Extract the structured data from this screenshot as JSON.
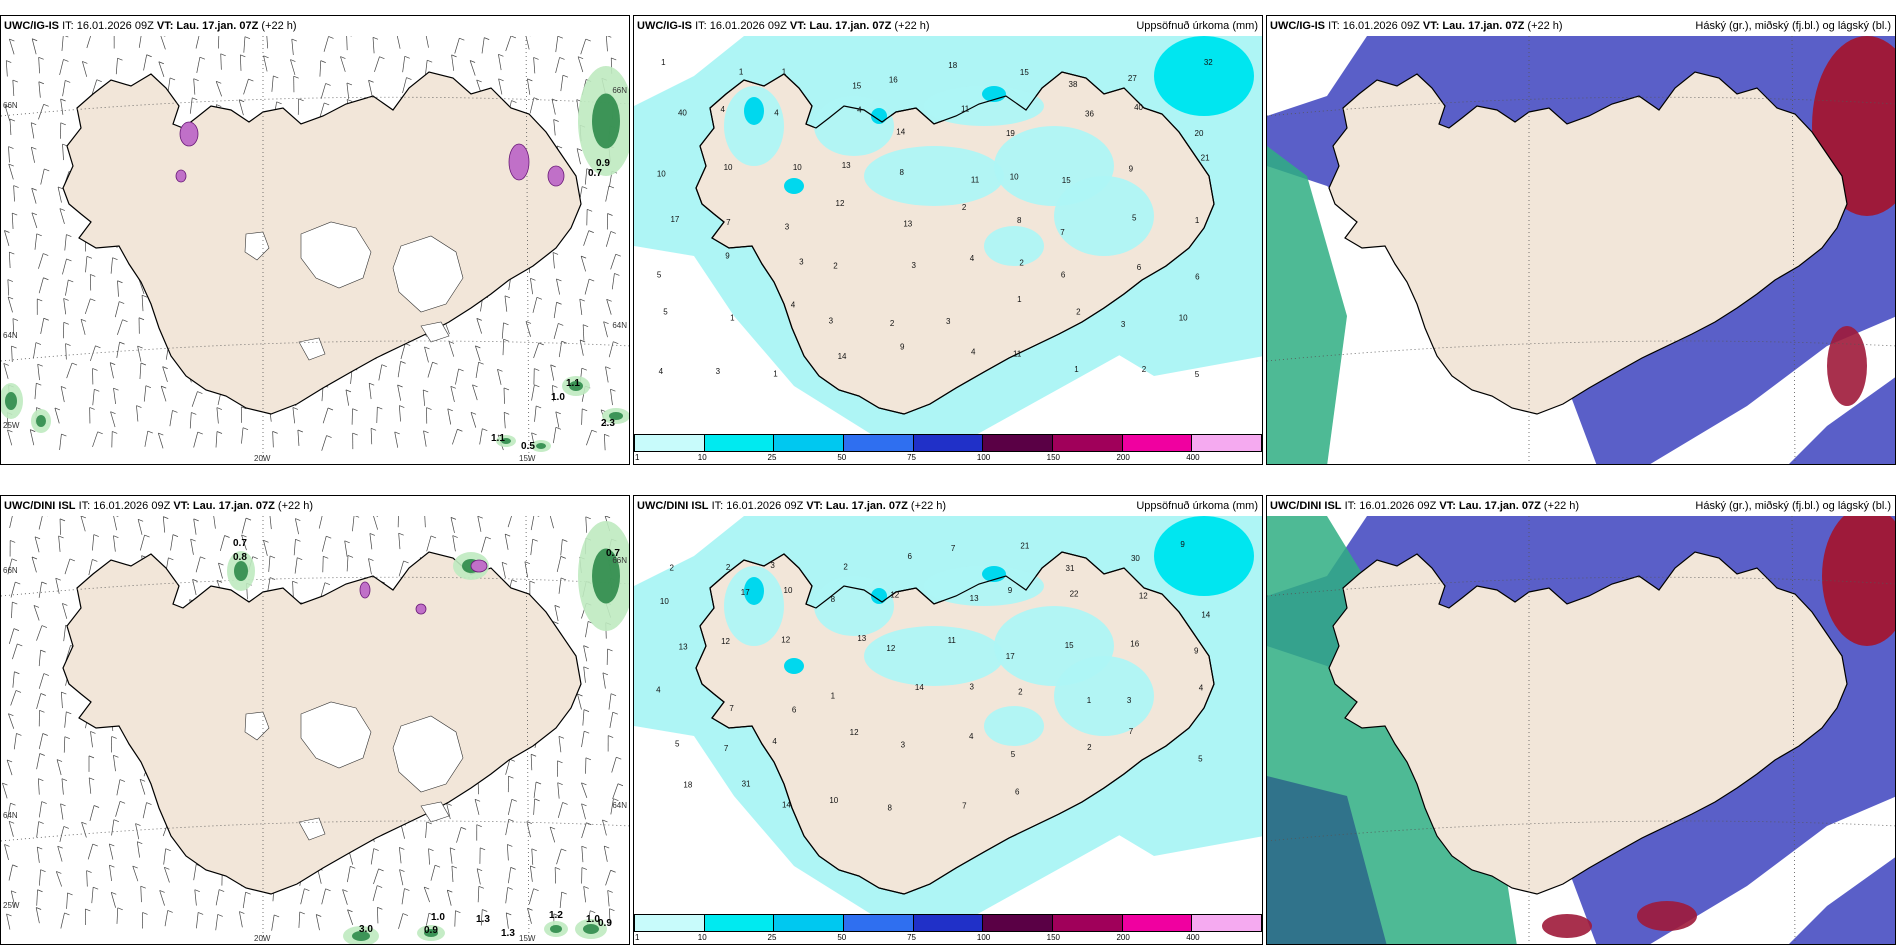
{
  "rows": [
    {
      "model": "UWC/IG-IS",
      "it_label": "IT: 16.01.2026 09Z",
      "vt_label": "VT: Lau. 17.jan. 07Z",
      "lead": "(+22 h)",
      "panel1": {
        "lat_labels": [
          "66N",
          "64N",
          "25W"
        ],
        "lon_labels": [
          "20W",
          "15W"
        ],
        "right_lat_labels": [
          "66N",
          "64N"
        ],
        "contour_values": [
          "0.9",
          "0.7",
          "1.1",
          "1.0",
          "1.1",
          "0.5",
          "2.3"
        ]
      },
      "panel2": {
        "title": "Uppsöfnuð úrkoma (mm)",
        "numbers": [
          "1",
          "1",
          "1",
          "15",
          "16",
          "18",
          "15",
          "38",
          "27",
          "32",
          "40",
          "4",
          "4",
          "4",
          "14",
          "11",
          "19",
          "36",
          "40",
          "20",
          "10",
          "10",
          "10",
          "13",
          "8",
          "11",
          "10",
          "15",
          "9",
          "21",
          "17",
          "7",
          "3",
          "12",
          "13",
          "2",
          "8",
          "7",
          "5",
          "1",
          "5",
          "9",
          "3",
          "2",
          "3",
          "4",
          "2",
          "6",
          "6",
          "6",
          "5",
          "1",
          "4",
          "3",
          "2",
          "3",
          "1",
          "2",
          "3",
          "10",
          "4",
          "3",
          "1",
          "14",
          "9",
          "4",
          "11",
          "1",
          "2",
          "5"
        ]
      },
      "panel3": {
        "title": "Háský (gr.), miðský (fj.bl.) og lágský (bl.)"
      }
    },
    {
      "model": "UWC/DINI ISL",
      "it_label": "IT: 16.01.2026 09Z",
      "vt_label": "VT: Lau. 17.jan. 07Z",
      "lead": "(+22 h)",
      "panel1": {
        "lat_labels": [
          "66N",
          "64N",
          "25W"
        ],
        "lon_labels": [
          "20W",
          "15W"
        ],
        "right_lat_labels": [
          "66N",
          "64N"
        ],
        "contour_values": [
          "0.7",
          "0.8",
          "0.7",
          "3.0",
          "1.0",
          "0.9",
          "1.3",
          "1.2",
          "1.0",
          "0.9",
          "1.3"
        ]
      },
      "panel2": {
        "title": "Uppsöfnuð úrkoma (mm)",
        "numbers": [
          "2",
          "2",
          "3",
          "2",
          "6",
          "7",
          "21",
          "31",
          "30",
          "9",
          "10",
          "17",
          "10",
          "8",
          "12",
          "13",
          "9",
          "22",
          "12",
          "14",
          "13",
          "12",
          "12",
          "13",
          "12",
          "11",
          "17",
          "15",
          "16",
          "9",
          "4",
          "7",
          "6",
          "1",
          "14",
          "3",
          "2",
          "1",
          "3",
          "4",
          "5",
          "7",
          "4",
          "12",
          "3",
          "4",
          "5",
          "2",
          "7",
          "5",
          "18",
          "31",
          "14",
          "10",
          "8",
          "7",
          "6"
        ]
      },
      "panel3": {
        "title": "Háský (gr.), miðský (fj.bl.) og lágský (bl.)"
      }
    }
  ],
  "legend": {
    "ticks": [
      "1",
      "10",
      "25",
      "50",
      "75",
      "100",
      "150",
      "200",
      "400"
    ],
    "colors": [
      "#c8fbfb",
      "#00eaf0",
      "#00c8f0",
      "#2f6ff0",
      "#2030c8",
      "#5a0045",
      "#a0005a",
      "#f000a0",
      "#f5aaf0"
    ]
  },
  "colors": {
    "land": "#f2e6d9",
    "precip": "#aef5f5",
    "cloud_low": "#5a5fc8",
    "cloud_high": "#9e1a3a",
    "cloud_mid": "#2fae83"
  }
}
